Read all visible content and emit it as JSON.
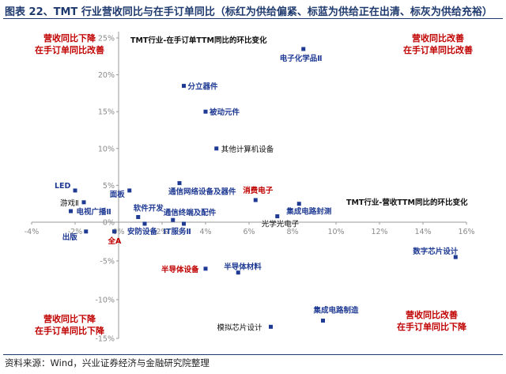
{
  "figure": {
    "title": "图表 22、TMT 行业营收同比与在手订单同比（标红为供给偏紧、标蓝为供给正在出清、标灰为供给充裕）",
    "source": "资料来源：Wind，兴业证券经济与金融研究院整理"
  },
  "chart_data": {
    "type": "scatter",
    "xlabel": "TMT行业-营收TTM同比的环比变化",
    "ylabel": "TMT行业-在手订单TTM同比的环比变化",
    "xlim": [
      -4,
      16
    ],
    "ylim": [
      -15,
      25
    ],
    "x_ticks": [
      "-4%",
      "-2%",
      "0%",
      "2%",
      "4%",
      "6%",
      "8%",
      "10%",
      "12%",
      "14%",
      "16%"
    ],
    "y_ticks": [
      "25%",
      "20%",
      "15%",
      "10%",
      "5%",
      "0%",
      "-5%",
      "-10%",
      "-15%"
    ],
    "quadrant_labels": {
      "top_left": [
        "营收同比下降",
        "在手订单同比改善"
      ],
      "top_right": [
        "营收同比改善",
        "在手订单同比改善"
      ],
      "bottom_left": [
        "营收同比下降",
        "在手订单同比下降"
      ],
      "bottom_right": [
        "营收同比改善",
        "在手订单同比下降"
      ]
    },
    "colors": {
      "red": "#c00000",
      "blue": "#1f3a93",
      "gray": "#111111",
      "marker": "#1f3a93",
      "quadrant": "#c00000"
    },
    "points": [
      {
        "name": "电子化学品Ⅱ",
        "x": 8.5,
        "y": 23.5,
        "group": "blue"
      },
      {
        "name": "分立器件",
        "x": 3.0,
        "y": 18.5,
        "group": "blue"
      },
      {
        "name": "被动元件",
        "x": 4.0,
        "y": 15.0,
        "group": "blue"
      },
      {
        "name": "其他计算机设备",
        "x": 4.5,
        "y": 10.0,
        "group": "gray"
      },
      {
        "name": "LED",
        "x": -2.0,
        "y": 4.3,
        "group": "blue"
      },
      {
        "name": "面板",
        "x": 0.5,
        "y": 4.3,
        "group": "blue"
      },
      {
        "name": "通信网络设备及器件",
        "x": 2.8,
        "y": 5.3,
        "group": "blue"
      },
      {
        "name": "消费电子",
        "x": 6.3,
        "y": 3.0,
        "group": "red"
      },
      {
        "name": "游戏Ⅱ",
        "x": -1.6,
        "y": 2.7,
        "group": "gray"
      },
      {
        "name": "集成电路封测",
        "x": 8.3,
        "y": 2.5,
        "group": "blue"
      },
      {
        "name": "电视广播Ⅱ",
        "x": -2.2,
        "y": 1.5,
        "group": "blue"
      },
      {
        "name": "软件开发",
        "x": 0.9,
        "y": 0.7,
        "group": "blue"
      },
      {
        "name": "光学光电子",
        "x": 7.3,
        "y": 0.8,
        "group": "gray"
      },
      {
        "name": "通信终端及配件",
        "x": 2.5,
        "y": 0.3,
        "group": "blue"
      },
      {
        "name": "安防设备",
        "x": 1.2,
        "y": -0.2,
        "group": "blue"
      },
      {
        "name": "IT服务Ⅱ",
        "x": 3.0,
        "y": -0.2,
        "group": "blue"
      },
      {
        "name": "出版",
        "x": -1.5,
        "y": -1.2,
        "group": "blue"
      },
      {
        "name": "全A",
        "x": -0.2,
        "y": -1.2,
        "group": "red"
      },
      {
        "name": "数字芯片设计",
        "x": 15.5,
        "y": -4.5,
        "group": "blue"
      },
      {
        "name": "半导体设备",
        "x": 4.0,
        "y": -6.0,
        "group": "red"
      },
      {
        "name": "半导体材料",
        "x": 5.5,
        "y": -6.5,
        "group": "blue"
      },
      {
        "name": "集成电路制造",
        "x": 9.4,
        "y": -12.7,
        "group": "blue"
      },
      {
        "name": "模拟芯片设计",
        "x": 7.0,
        "y": -13.5,
        "group": "gray"
      }
    ]
  }
}
